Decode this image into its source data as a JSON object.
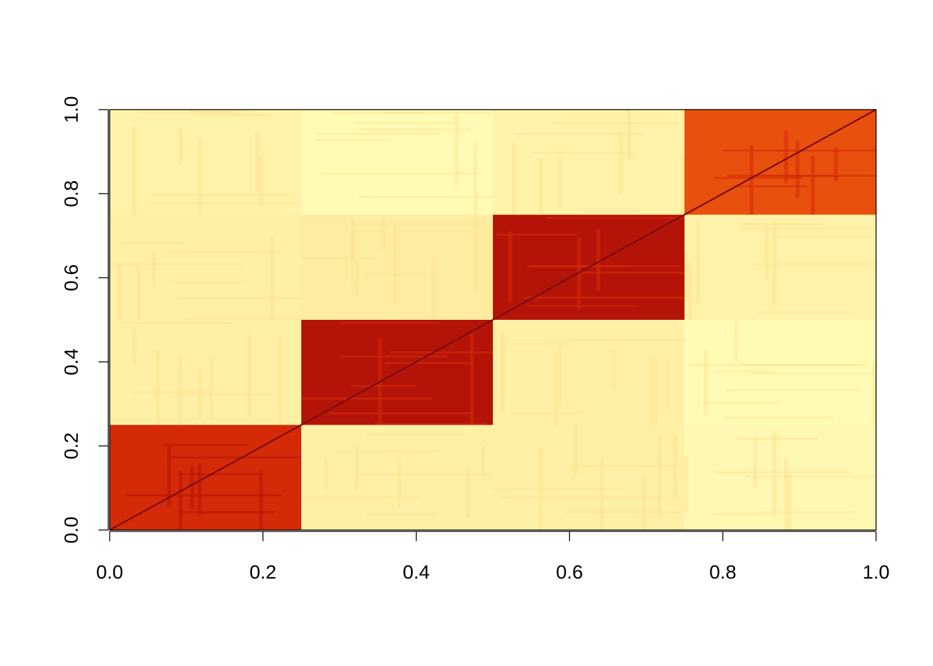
{
  "chart_data": {
    "type": "heatmap",
    "title": "",
    "xlabel": "",
    "ylabel": "",
    "xlim": [
      0,
      1
    ],
    "ylim": [
      0,
      1
    ],
    "x_ticks": [
      "0.0",
      "0.2",
      "0.4",
      "0.6",
      "0.8",
      "1.0"
    ],
    "y_ticks": [
      "0.0",
      "0.2",
      "0.4",
      "0.6",
      "0.8",
      "1.0"
    ],
    "grid": false,
    "legend": "none",
    "colormap": [
      "#FFFFB2",
      "#FEF0A0",
      "#FDDC88",
      "#FD8D3C",
      "#E8500D",
      "#D42A08",
      "#B41408"
    ],
    "block_size": 0.25,
    "blocks": [
      {
        "x": [
          0.0,
          0.25
        ],
        "y": [
          0.0,
          0.25
        ],
        "value": 0.93,
        "color": "#D42A08"
      },
      {
        "x": [
          0.25,
          0.5
        ],
        "y": [
          0.0,
          0.25
        ],
        "value": 0.1,
        "color": "#FEF0A5"
      },
      {
        "x": [
          0.5,
          0.75
        ],
        "y": [
          0.0,
          0.25
        ],
        "value": 0.1,
        "color": "#FEF0A5"
      },
      {
        "x": [
          0.75,
          1.0
        ],
        "y": [
          0.0,
          0.25
        ],
        "value": 0.06,
        "color": "#FFF8B2"
      },
      {
        "x": [
          0.0,
          0.25
        ],
        "y": [
          0.25,
          0.5
        ],
        "value": 0.1,
        "color": "#FEF0A5"
      },
      {
        "x": [
          0.25,
          0.5
        ],
        "y": [
          0.25,
          0.5
        ],
        "value": 0.97,
        "color": "#B41408"
      },
      {
        "x": [
          0.5,
          0.75
        ],
        "y": [
          0.25,
          0.5
        ],
        "value": 0.1,
        "color": "#FEF0A5"
      },
      {
        "x": [
          0.75,
          1.0
        ],
        "y": [
          0.25,
          0.5
        ],
        "value": 0.03,
        "color": "#FFFBB5"
      },
      {
        "x": [
          0.0,
          0.25
        ],
        "y": [
          0.5,
          0.75
        ],
        "value": 0.1,
        "color": "#FEF0A5"
      },
      {
        "x": [
          0.25,
          0.5
        ],
        "y": [
          0.5,
          0.75
        ],
        "value": 0.12,
        "color": "#FEEDA0"
      },
      {
        "x": [
          0.5,
          0.75
        ],
        "y": [
          0.5,
          0.75
        ],
        "value": 0.96,
        "color": "#B41408"
      },
      {
        "x": [
          0.75,
          1.0
        ],
        "y": [
          0.5,
          0.75
        ],
        "value": 0.08,
        "color": "#FEF3A8"
      },
      {
        "x": [
          0.0,
          0.25
        ],
        "y": [
          0.75,
          1.0
        ],
        "value": 0.08,
        "color": "#FEF3A8"
      },
      {
        "x": [
          0.25,
          0.5
        ],
        "y": [
          0.75,
          1.0
        ],
        "value": 0.03,
        "color": "#FFFBB5"
      },
      {
        "x": [
          0.5,
          0.75
        ],
        "y": [
          0.75,
          1.0
        ],
        "value": 0.08,
        "color": "#FEF3A8"
      },
      {
        "x": [
          0.75,
          1.0
        ],
        "y": [
          0.75,
          1.0
        ],
        "value": 0.88,
        "color": "#E8500D"
      }
    ],
    "diagonal": {
      "value": 1.0,
      "color": "#7A0A10"
    }
  }
}
